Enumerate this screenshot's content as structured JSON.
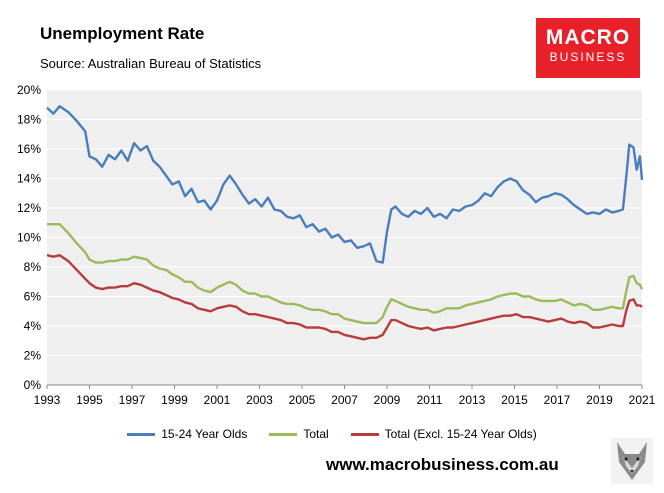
{
  "header": {
    "title": "Unemployment Rate",
    "subtitle": "Source: Australian Bureau of Statistics"
  },
  "logo": {
    "line1": "MACRO",
    "line2": "BUSINESS",
    "color": "#e8202a"
  },
  "footer": {
    "website": "www.macrobusiness.com.au",
    "icon": "wolf-icon"
  },
  "chart_data": {
    "type": "line",
    "title": "Unemployment Rate",
    "xlabel": "",
    "ylabel": "",
    "xlim": [
      1993,
      2021
    ],
    "ylim": [
      0,
      20
    ],
    "y_ticks": [
      "0%",
      "2%",
      "4%",
      "6%",
      "8%",
      "10%",
      "12%",
      "14%",
      "16%",
      "18%",
      "20%"
    ],
    "x_ticks": [
      "1993",
      "1995",
      "1997",
      "1999",
      "2001",
      "2003",
      "2005",
      "2007",
      "2009",
      "2011",
      "2013",
      "2015",
      "2017",
      "2019",
      "2021"
    ],
    "grid": true,
    "legend_position": "bottom",
    "series": [
      {
        "name": "15-24 Year Olds",
        "color": "#4a7ebb",
        "points": [
          [
            1993.0,
            18.8
          ],
          [
            1993.3,
            18.4
          ],
          [
            1993.6,
            18.9
          ],
          [
            1994.0,
            18.5
          ],
          [
            1994.4,
            17.9
          ],
          [
            1994.8,
            17.2
          ],
          [
            1995.0,
            15.5
          ],
          [
            1995.3,
            15.3
          ],
          [
            1995.6,
            14.8
          ],
          [
            1995.9,
            15.6
          ],
          [
            1996.2,
            15.3
          ],
          [
            1996.5,
            15.9
          ],
          [
            1996.8,
            15.2
          ],
          [
            1997.1,
            16.4
          ],
          [
            1997.4,
            15.9
          ],
          [
            1997.7,
            16.2
          ],
          [
            1998.0,
            15.2
          ],
          [
            1998.3,
            14.8
          ],
          [
            1998.6,
            14.2
          ],
          [
            1998.9,
            13.6
          ],
          [
            1999.2,
            13.8
          ],
          [
            1999.5,
            12.8
          ],
          [
            1999.8,
            13.3
          ],
          [
            2000.1,
            12.4
          ],
          [
            2000.4,
            12.5
          ],
          [
            2000.7,
            11.9
          ],
          [
            2001.0,
            12.5
          ],
          [
            2001.3,
            13.6
          ],
          [
            2001.6,
            14.2
          ],
          [
            2001.9,
            13.6
          ],
          [
            2002.2,
            12.9
          ],
          [
            2002.5,
            12.3
          ],
          [
            2002.8,
            12.6
          ],
          [
            2003.1,
            12.1
          ],
          [
            2003.4,
            12.7
          ],
          [
            2003.7,
            11.9
          ],
          [
            2004.0,
            11.8
          ],
          [
            2004.3,
            11.4
          ],
          [
            2004.6,
            11.3
          ],
          [
            2004.9,
            11.5
          ],
          [
            2005.2,
            10.7
          ],
          [
            2005.5,
            10.9
          ],
          [
            2005.8,
            10.4
          ],
          [
            2006.1,
            10.6
          ],
          [
            2006.4,
            10.0
          ],
          [
            2006.7,
            10.2
          ],
          [
            2007.0,
            9.7
          ],
          [
            2007.3,
            9.8
          ],
          [
            2007.6,
            9.3
          ],
          [
            2007.9,
            9.4
          ],
          [
            2008.2,
            9.6
          ],
          [
            2008.5,
            8.4
          ],
          [
            2008.8,
            8.3
          ],
          [
            2009.0,
            10.4
          ],
          [
            2009.2,
            11.9
          ],
          [
            2009.4,
            12.1
          ],
          [
            2009.7,
            11.6
          ],
          [
            2010.0,
            11.4
          ],
          [
            2010.3,
            11.8
          ],
          [
            2010.6,
            11.6
          ],
          [
            2010.9,
            12.0
          ],
          [
            2011.2,
            11.4
          ],
          [
            2011.5,
            11.6
          ],
          [
            2011.8,
            11.3
          ],
          [
            2012.1,
            11.9
          ],
          [
            2012.4,
            11.8
          ],
          [
            2012.7,
            12.1
          ],
          [
            2013.0,
            12.2
          ],
          [
            2013.3,
            12.5
          ],
          [
            2013.6,
            13.0
          ],
          [
            2013.9,
            12.8
          ],
          [
            2014.2,
            13.4
          ],
          [
            2014.5,
            13.8
          ],
          [
            2014.8,
            14.0
          ],
          [
            2015.1,
            13.8
          ],
          [
            2015.4,
            13.2
          ],
          [
            2015.7,
            12.9
          ],
          [
            2016.0,
            12.4
          ],
          [
            2016.3,
            12.7
          ],
          [
            2016.6,
            12.8
          ],
          [
            2016.9,
            13.0
          ],
          [
            2017.2,
            12.9
          ],
          [
            2017.5,
            12.6
          ],
          [
            2017.8,
            12.2
          ],
          [
            2018.1,
            11.9
          ],
          [
            2018.4,
            11.6
          ],
          [
            2018.7,
            11.7
          ],
          [
            2019.0,
            11.6
          ],
          [
            2019.3,
            11.9
          ],
          [
            2019.6,
            11.7
          ],
          [
            2019.9,
            11.8
          ],
          [
            2020.1,
            11.9
          ],
          [
            2020.25,
            14.0
          ],
          [
            2020.4,
            16.3
          ],
          [
            2020.6,
            16.1
          ],
          [
            2020.75,
            14.6
          ],
          [
            2020.9,
            15.5
          ],
          [
            2021.0,
            13.9
          ]
        ]
      },
      {
        "name": "Total",
        "color": "#9bbb59",
        "points": [
          [
            1993.0,
            10.9
          ],
          [
            1993.3,
            10.9
          ],
          [
            1993.6,
            10.9
          ],
          [
            1994.0,
            10.3
          ],
          [
            1994.4,
            9.6
          ],
          [
            1994.8,
            9.0
          ],
          [
            1995.0,
            8.5
          ],
          [
            1995.3,
            8.3
          ],
          [
            1995.6,
            8.3
          ],
          [
            1995.9,
            8.4
          ],
          [
            1996.2,
            8.4
          ],
          [
            1996.5,
            8.5
          ],
          [
            1996.8,
            8.5
          ],
          [
            1997.1,
            8.7
          ],
          [
            1997.4,
            8.6
          ],
          [
            1997.7,
            8.5
          ],
          [
            1998.0,
            8.1
          ],
          [
            1998.3,
            7.9
          ],
          [
            1998.6,
            7.8
          ],
          [
            1998.9,
            7.5
          ],
          [
            1999.2,
            7.3
          ],
          [
            1999.5,
            7.0
          ],
          [
            1999.8,
            7.0
          ],
          [
            2000.1,
            6.6
          ],
          [
            2000.4,
            6.4
          ],
          [
            2000.7,
            6.3
          ],
          [
            2001.0,
            6.6
          ],
          [
            2001.3,
            6.8
          ],
          [
            2001.6,
            7.0
          ],
          [
            2001.9,
            6.8
          ],
          [
            2002.2,
            6.4
          ],
          [
            2002.5,
            6.2
          ],
          [
            2002.8,
            6.2
          ],
          [
            2003.1,
            6.0
          ],
          [
            2003.4,
            6.0
          ],
          [
            2003.7,
            5.8
          ],
          [
            2004.0,
            5.6
          ],
          [
            2004.3,
            5.5
          ],
          [
            2004.6,
            5.5
          ],
          [
            2004.9,
            5.4
          ],
          [
            2005.2,
            5.2
          ],
          [
            2005.5,
            5.1
          ],
          [
            2005.8,
            5.1
          ],
          [
            2006.1,
            5.0
          ],
          [
            2006.4,
            4.8
          ],
          [
            2006.7,
            4.8
          ],
          [
            2007.0,
            4.5
          ],
          [
            2007.3,
            4.4
          ],
          [
            2007.6,
            4.3
          ],
          [
            2007.9,
            4.2
          ],
          [
            2008.2,
            4.2
          ],
          [
            2008.5,
            4.2
          ],
          [
            2008.8,
            4.6
          ],
          [
            2009.0,
            5.3
          ],
          [
            2009.2,
            5.8
          ],
          [
            2009.4,
            5.7
          ],
          [
            2009.7,
            5.5
          ],
          [
            2010.0,
            5.3
          ],
          [
            2010.3,
            5.2
          ],
          [
            2010.6,
            5.1
          ],
          [
            2010.9,
            5.1
          ],
          [
            2011.2,
            4.9
          ],
          [
            2011.5,
            5.0
          ],
          [
            2011.8,
            5.2
          ],
          [
            2012.1,
            5.2
          ],
          [
            2012.4,
            5.2
          ],
          [
            2012.7,
            5.4
          ],
          [
            2013.0,
            5.5
          ],
          [
            2013.3,
            5.6
          ],
          [
            2013.6,
            5.7
          ],
          [
            2013.9,
            5.8
          ],
          [
            2014.2,
            6.0
          ],
          [
            2014.5,
            6.1
          ],
          [
            2014.8,
            6.2
          ],
          [
            2015.1,
            6.2
          ],
          [
            2015.4,
            6.0
          ],
          [
            2015.7,
            6.0
          ],
          [
            2016.0,
            5.8
          ],
          [
            2016.3,
            5.7
          ],
          [
            2016.6,
            5.7
          ],
          [
            2016.9,
            5.7
          ],
          [
            2017.2,
            5.8
          ],
          [
            2017.5,
            5.6
          ],
          [
            2017.8,
            5.4
          ],
          [
            2018.1,
            5.5
          ],
          [
            2018.4,
            5.4
          ],
          [
            2018.7,
            5.1
          ],
          [
            2019.0,
            5.1
          ],
          [
            2019.3,
            5.2
          ],
          [
            2019.6,
            5.3
          ],
          [
            2019.9,
            5.2
          ],
          [
            2020.1,
            5.2
          ],
          [
            2020.25,
            6.3
          ],
          [
            2020.4,
            7.3
          ],
          [
            2020.6,
            7.4
          ],
          [
            2020.75,
            6.9
          ],
          [
            2020.9,
            6.8
          ],
          [
            2021.0,
            6.5
          ]
        ]
      },
      {
        "name": "Total (Excl. 15-24 Year Olds)",
        "color": "#b83c3c",
        "points": [
          [
            1993.0,
            8.8
          ],
          [
            1993.3,
            8.7
          ],
          [
            1993.6,
            8.8
          ],
          [
            1994.0,
            8.4
          ],
          [
            1994.4,
            7.8
          ],
          [
            1994.8,
            7.2
          ],
          [
            1995.0,
            6.9
          ],
          [
            1995.3,
            6.6
          ],
          [
            1995.6,
            6.5
          ],
          [
            1995.9,
            6.6
          ],
          [
            1996.2,
            6.6
          ],
          [
            1996.5,
            6.7
          ],
          [
            1996.8,
            6.7
          ],
          [
            1997.1,
            6.9
          ],
          [
            1997.4,
            6.8
          ],
          [
            1997.7,
            6.6
          ],
          [
            1998.0,
            6.4
          ],
          [
            1998.3,
            6.3
          ],
          [
            1998.6,
            6.1
          ],
          [
            1998.9,
            5.9
          ],
          [
            1999.2,
            5.8
          ],
          [
            1999.5,
            5.6
          ],
          [
            1999.8,
            5.5
          ],
          [
            2000.1,
            5.2
          ],
          [
            2000.4,
            5.1
          ],
          [
            2000.7,
            5.0
          ],
          [
            2001.0,
            5.2
          ],
          [
            2001.3,
            5.3
          ],
          [
            2001.6,
            5.4
          ],
          [
            2001.9,
            5.3
          ],
          [
            2002.2,
            5.0
          ],
          [
            2002.5,
            4.8
          ],
          [
            2002.8,
            4.8
          ],
          [
            2003.1,
            4.7
          ],
          [
            2003.4,
            4.6
          ],
          [
            2003.7,
            4.5
          ],
          [
            2004.0,
            4.4
          ],
          [
            2004.3,
            4.2
          ],
          [
            2004.6,
            4.2
          ],
          [
            2004.9,
            4.1
          ],
          [
            2005.2,
            3.9
          ],
          [
            2005.5,
            3.9
          ],
          [
            2005.8,
            3.9
          ],
          [
            2006.1,
            3.8
          ],
          [
            2006.4,
            3.6
          ],
          [
            2006.7,
            3.6
          ],
          [
            2007.0,
            3.4
          ],
          [
            2007.3,
            3.3
          ],
          [
            2007.6,
            3.2
          ],
          [
            2007.9,
            3.1
          ],
          [
            2008.2,
            3.2
          ],
          [
            2008.5,
            3.2
          ],
          [
            2008.8,
            3.4
          ],
          [
            2009.0,
            3.9
          ],
          [
            2009.2,
            4.4
          ],
          [
            2009.4,
            4.4
          ],
          [
            2009.7,
            4.2
          ],
          [
            2010.0,
            4.0
          ],
          [
            2010.3,
            3.9
          ],
          [
            2010.6,
            3.8
          ],
          [
            2010.9,
            3.9
          ],
          [
            2011.2,
            3.7
          ],
          [
            2011.5,
            3.8
          ],
          [
            2011.8,
            3.9
          ],
          [
            2012.1,
            3.9
          ],
          [
            2012.4,
            4.0
          ],
          [
            2012.7,
            4.1
          ],
          [
            2013.0,
            4.2
          ],
          [
            2013.3,
            4.3
          ],
          [
            2013.6,
            4.4
          ],
          [
            2013.9,
            4.5
          ],
          [
            2014.2,
            4.6
          ],
          [
            2014.5,
            4.7
          ],
          [
            2014.8,
            4.7
          ],
          [
            2015.1,
            4.8
          ],
          [
            2015.4,
            4.6
          ],
          [
            2015.7,
            4.6
          ],
          [
            2016.0,
            4.5
          ],
          [
            2016.3,
            4.4
          ],
          [
            2016.6,
            4.3
          ],
          [
            2016.9,
            4.4
          ],
          [
            2017.2,
            4.5
          ],
          [
            2017.5,
            4.3
          ],
          [
            2017.8,
            4.2
          ],
          [
            2018.1,
            4.3
          ],
          [
            2018.4,
            4.2
          ],
          [
            2018.7,
            3.9
          ],
          [
            2019.0,
            3.9
          ],
          [
            2019.3,
            4.0
          ],
          [
            2019.6,
            4.1
          ],
          [
            2019.9,
            4.0
          ],
          [
            2020.1,
            4.0
          ],
          [
            2020.25,
            5.0
          ],
          [
            2020.4,
            5.7
          ],
          [
            2020.6,
            5.8
          ],
          [
            2020.75,
            5.4
          ],
          [
            2020.9,
            5.4
          ],
          [
            2021.0,
            5.3
          ]
        ]
      }
    ]
  }
}
